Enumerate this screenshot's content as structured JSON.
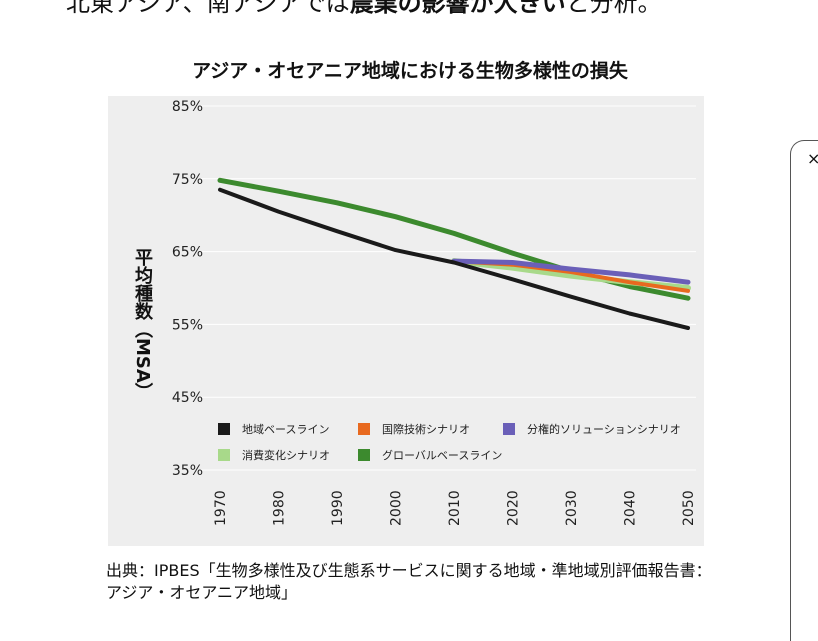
{
  "intro": {
    "prefix": "北東アジア、南アジアでは",
    "bold": "農業の影響が大きい",
    "suffix": "と分析。"
  },
  "side_panel": {
    "close_glyph": "×"
  },
  "source_text": "出典：IPBES「生物多様性及び生態系サービスに関する地域・準地域別評価報告書：アジア・オセアニア地域」",
  "chart_data": {
    "type": "line",
    "title": "アジア・オセアニア地域における生物多様性の損失",
    "ylabel": "平均種数（MSA）",
    "xlabel": "",
    "x": [
      1970,
      1980,
      1990,
      2000,
      2010,
      2020,
      2030,
      2040,
      2050
    ],
    "x_ticks": [
      "1970",
      "1980",
      "1990",
      "2000",
      "2010",
      "2020",
      "2030",
      "2040",
      "2050"
    ],
    "ylim": [
      35,
      85
    ],
    "y_ticks": [
      "35%",
      "45%",
      "55%",
      "65%",
      "75%",
      "85%"
    ],
    "y_tick_values": [
      35,
      45,
      55,
      65,
      75,
      85
    ],
    "grid": true,
    "legend_position": "bottom",
    "series": [
      {
        "name": "地域ベースライン",
        "color": "#1a1a1a",
        "points": [
          [
            1970,
            73.5
          ],
          [
            1980,
            70.5
          ],
          [
            1990,
            67.8
          ],
          [
            2000,
            65.2
          ],
          [
            2010,
            63.5
          ],
          [
            2020,
            61.2
          ],
          [
            2030,
            58.8
          ],
          [
            2040,
            56.5
          ],
          [
            2050,
            54.5
          ]
        ]
      },
      {
        "name": "国際技術シナリオ",
        "color": "#e8691f",
        "points": [
          [
            2010,
            63.7
          ],
          [
            2020,
            63.2
          ],
          [
            2030,
            62.2
          ],
          [
            2040,
            60.8
          ],
          [
            2050,
            59.6
          ]
        ]
      },
      {
        "name": "分権的ソリューションシナリオ",
        "color": "#6a5fb8",
        "points": [
          [
            2010,
            63.7
          ],
          [
            2020,
            63.5
          ],
          [
            2030,
            62.6
          ],
          [
            2040,
            61.8
          ],
          [
            2050,
            60.8
          ]
        ]
      },
      {
        "name": "消費変化シナリオ",
        "color": "#a8d98a",
        "points": [
          [
            2010,
            63.7
          ],
          [
            2020,
            62.8
          ],
          [
            2030,
            61.7
          ],
          [
            2040,
            60.8
          ],
          [
            2050,
            60.0
          ]
        ]
      },
      {
        "name": "グローバルベースライン",
        "color": "#3c8a2e",
        "points": [
          [
            1970,
            74.8
          ],
          [
            1980,
            73.3
          ],
          [
            1990,
            71.7
          ],
          [
            2000,
            69.8
          ],
          [
            2010,
            67.5
          ],
          [
            2020,
            64.8
          ],
          [
            2030,
            62.3
          ],
          [
            2040,
            60.2
          ],
          [
            2050,
            58.6
          ]
        ]
      }
    ]
  }
}
